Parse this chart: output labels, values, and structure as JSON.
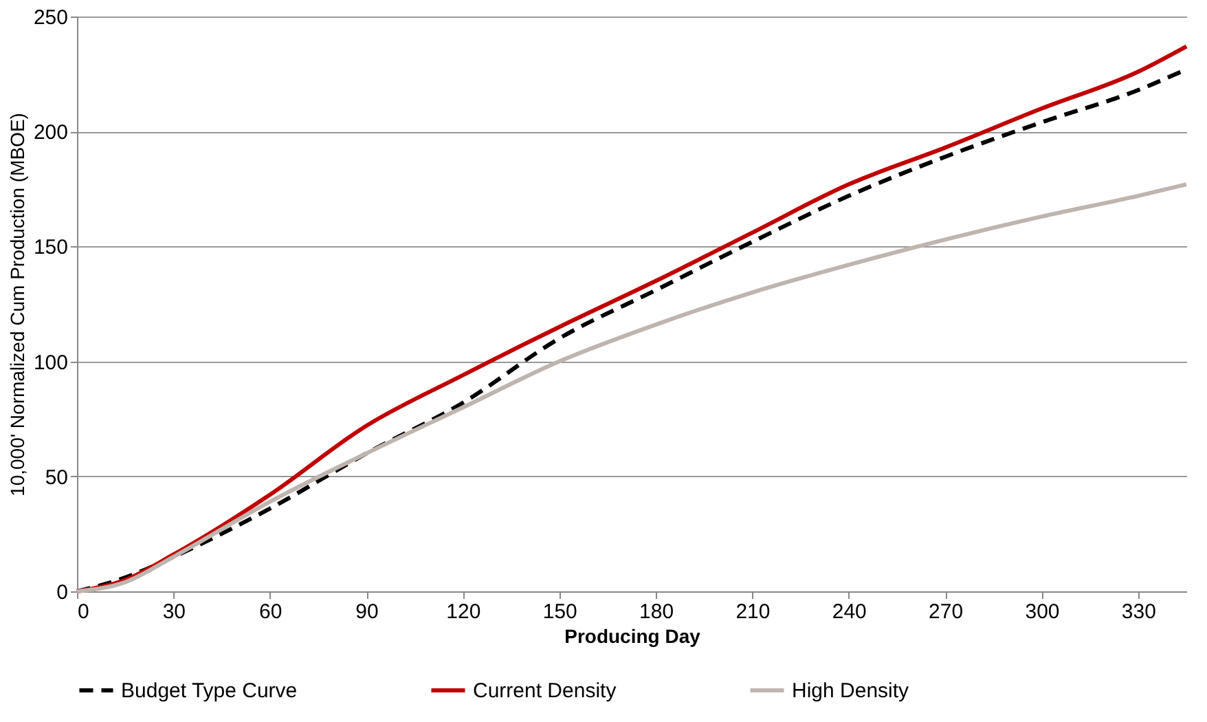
{
  "chart_data": {
    "type": "line",
    "xlabel": "Producing Day",
    "ylabel": "10,000' Normalized Cum Production (MBOE)",
    "xlim": [
      0,
      345
    ],
    "xticks": [
      0,
      30,
      60,
      90,
      120,
      150,
      180,
      210,
      240,
      270,
      300,
      330
    ],
    "ylim": [
      0,
      250
    ],
    "yticks": [
      0,
      50,
      100,
      150,
      200,
      250
    ],
    "grid": "y",
    "legend": "bottom",
    "x": [
      0,
      15,
      30,
      60,
      90,
      120,
      150,
      180,
      210,
      240,
      270,
      300,
      330,
      345
    ],
    "series": [
      {
        "name": "Budget Type Curve",
        "color": "#000000",
        "line_style": "dashed",
        "values": [
          0,
          6,
          15,
          36,
          60,
          82,
          110,
          131,
          152,
          172,
          189,
          204,
          218,
          227
        ]
      },
      {
        "name": "Current Density",
        "color": "#c00000",
        "line_style": "solid",
        "values": [
          0,
          5,
          16,
          42,
          72,
          94,
          115,
          135,
          156,
          177,
          193,
          210,
          226,
          237
        ]
      },
      {
        "name": "High Density",
        "color": "#bfb5ae",
        "line_style": "solid",
        "values": [
          0,
          4,
          15,
          39,
          60,
          80,
          100,
          116,
          130,
          142,
          153,
          163,
          172,
          177
        ]
      }
    ]
  }
}
